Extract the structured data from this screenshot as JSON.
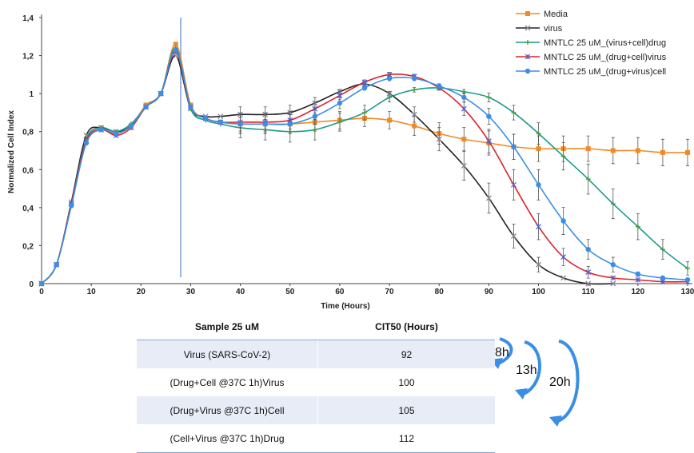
{
  "chart_data": {
    "type": "line",
    "xlabel": "Time (Hours)",
    "ylabel": "Normalized Cell Index",
    "xlim": [
      0,
      130
    ],
    "ylim": [
      0,
      1.4
    ],
    "x_ticks": [
      "0",
      "10",
      "20",
      "30",
      "40",
      "50",
      "60",
      "70",
      "80",
      "90",
      "100",
      "110",
      "120",
      "130"
    ],
    "y_ticks": [
      "0",
      "0,2",
      "0,4",
      "0,6",
      "0,8",
      "1",
      "1,2",
      "1,4"
    ],
    "legend_position": "top-right",
    "annotation_vline_x": 28,
    "series": [
      {
        "name": "Media",
        "color": "#f08a24",
        "marker": "square",
        "x": [
          0,
          3,
          6,
          9,
          12,
          15,
          18,
          21,
          24,
          27,
          30,
          33,
          36,
          40,
          45,
          50,
          55,
          60,
          65,
          70,
          75,
          80,
          85,
          90,
          95,
          100,
          105,
          110,
          115,
          120,
          125,
          130
        ],
        "y": [
          0,
          0.1,
          0.42,
          0.76,
          0.82,
          0.79,
          0.83,
          0.94,
          1.0,
          1.26,
          0.94,
          0.87,
          0.85,
          0.84,
          0.84,
          0.84,
          0.85,
          0.86,
          0.87,
          0.86,
          0.83,
          0.79,
          0.76,
          0.74,
          0.72,
          0.71,
          0.71,
          0.71,
          0.7,
          0.7,
          0.69,
          0.69
        ]
      },
      {
        "name": "virus",
        "color": "#222222",
        "marker": "x",
        "x": [
          0,
          3,
          6,
          9,
          12,
          15,
          18,
          21,
          24,
          27,
          30,
          33,
          36,
          40,
          45,
          50,
          55,
          60,
          65,
          70,
          75,
          80,
          85,
          90,
          95,
          100,
          105,
          110,
          115
        ],
        "y": [
          0,
          0.1,
          0.43,
          0.78,
          0.82,
          0.8,
          0.83,
          0.93,
          1.0,
          1.2,
          0.92,
          0.88,
          0.88,
          0.89,
          0.89,
          0.9,
          0.95,
          1.01,
          1.05,
          1.0,
          0.89,
          0.76,
          0.62,
          0.45,
          0.25,
          0.1,
          0.03,
          0.0,
          0.0
        ]
      },
      {
        "name": "MNTLC 25 uM_(virus+cell)drug",
        "color": "#1a9a8a",
        "marker": "plus",
        "x": [
          0,
          3,
          6,
          9,
          12,
          15,
          18,
          21,
          24,
          27,
          30,
          33,
          36,
          40,
          45,
          50,
          55,
          60,
          65,
          70,
          75,
          80,
          85,
          90,
          95,
          100,
          105,
          110,
          115,
          120,
          125,
          130
        ],
        "y": [
          0,
          0.1,
          0.42,
          0.76,
          0.82,
          0.8,
          0.84,
          0.93,
          1.0,
          1.24,
          0.92,
          0.86,
          0.84,
          0.82,
          0.81,
          0.8,
          0.81,
          0.85,
          0.9,
          0.98,
          1.02,
          1.03,
          1.01,
          0.98,
          0.9,
          0.79,
          0.67,
          0.55,
          0.42,
          0.3,
          0.18,
          0.08
        ]
      },
      {
        "name": "MNTLC 25 uM_(drug+cell)virus",
        "color": "#e0202a",
        "marker": "asterisk",
        "x": [
          0,
          3,
          6,
          9,
          12,
          15,
          18,
          21,
          24,
          27,
          30,
          33,
          36,
          40,
          45,
          50,
          55,
          60,
          65,
          70,
          75,
          80,
          85,
          90,
          95,
          100,
          105,
          110,
          115,
          120,
          125,
          130
        ],
        "y": [
          0,
          0.1,
          0.42,
          0.75,
          0.81,
          0.78,
          0.82,
          0.93,
          1.0,
          1.22,
          0.93,
          0.87,
          0.85,
          0.85,
          0.85,
          0.86,
          0.92,
          0.99,
          1.06,
          1.1,
          1.09,
          1.03,
          0.92,
          0.75,
          0.52,
          0.3,
          0.14,
          0.06,
          0.03,
          0.02,
          0.01,
          0.01
        ]
      },
      {
        "name": "MNTLC 25 uM_(drug+virus)cell",
        "color": "#3a8ee6",
        "marker": "diamond",
        "x": [
          0,
          3,
          6,
          9,
          12,
          15,
          18,
          21,
          24,
          27,
          30,
          33,
          36,
          40,
          45,
          50,
          55,
          60,
          65,
          70,
          75,
          80,
          85,
          90,
          95,
          100,
          105,
          110,
          115,
          120,
          125,
          130
        ],
        "y": [
          0,
          0.1,
          0.41,
          0.74,
          0.81,
          0.79,
          0.83,
          0.93,
          1.0,
          1.23,
          0.93,
          0.87,
          0.85,
          0.84,
          0.84,
          0.84,
          0.88,
          0.95,
          1.03,
          1.08,
          1.08,
          1.04,
          0.98,
          0.88,
          0.72,
          0.52,
          0.33,
          0.18,
          0.1,
          0.05,
          0.03,
          0.02
        ]
      }
    ]
  },
  "table": {
    "headers": [
      "Sample 25 uM",
      "CIT50 (Hours)"
    ],
    "rows": [
      [
        "Virus (SARS-CoV-2)",
        "92"
      ],
      [
        "(Drug+Cell @37C 1h)Virus",
        "100"
      ],
      [
        "(Drug+Virus @37C 1h)Cell",
        "105"
      ],
      [
        "(Cell+Virus @37C 1h)Drug",
        "112"
      ]
    ]
  },
  "delays": [
    "8h",
    "13h",
    "20h"
  ],
  "arrow_color": "#3a8ee6"
}
